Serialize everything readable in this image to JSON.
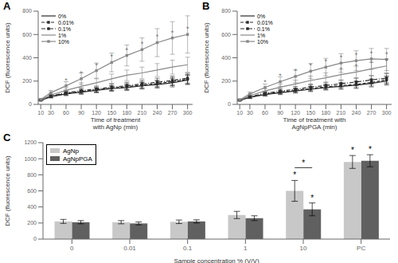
{
  "chart_data": [
    {
      "type": "line",
      "title": "A",
      "xlabel": "Time of treatment\nwith AgNp (min)",
      "ylabel": "DCF (fluorescence units)",
      "x": [
        10,
        30,
        60,
        90,
        120,
        150,
        180,
        210,
        240,
        270,
        300
      ],
      "xlim": [
        5,
        310
      ],
      "xticks": [
        10,
        30,
        60,
        90,
        120,
        150,
        180,
        210,
        240,
        270,
        300
      ],
      "ylim": [
        0,
        800
      ],
      "yticks": [
        0,
        200,
        400,
        600,
        800
      ],
      "grid": false,
      "legend": "upper left",
      "series": [
        {
          "name": "0%",
          "color": "#2b2b2b",
          "line_style": "solid",
          "marker": "none",
          "values": [
            35,
            65,
            90,
            105,
            120,
            135,
            145,
            160,
            170,
            185,
            210
          ],
          "errors": [
            5,
            10,
            15,
            18,
            20,
            22,
            25,
            28,
            30,
            35,
            40
          ]
        },
        {
          "name": "0.01%",
          "color": "#2b2b2b",
          "line_style": "dashed",
          "marker": "square",
          "values": [
            37,
            68,
            95,
            110,
            125,
            140,
            152,
            165,
            178,
            195,
            215
          ],
          "errors": [
            5,
            10,
            15,
            18,
            20,
            22,
            25,
            28,
            30,
            35,
            40
          ]
        },
        {
          "name": "0.1%",
          "color": "#2b2b2b",
          "line_style": "dashdot",
          "marker": "square",
          "values": [
            38,
            72,
            100,
            118,
            132,
            148,
            160,
            175,
            190,
            205,
            225
          ],
          "errors": [
            5,
            12,
            18,
            22,
            25,
            28,
            30,
            32,
            35,
            38,
            42
          ]
        },
        {
          "name": "1%",
          "color": "#888888",
          "line_style": "solid",
          "marker": "none",
          "values": [
            40,
            80,
            120,
            155,
            185,
            220,
            250,
            270,
            295,
            320,
            340
          ],
          "errors": [
            6,
            15,
            22,
            30,
            35,
            40,
            45,
            50,
            55,
            60,
            65
          ]
        },
        {
          "name": "10%",
          "color": "#888888",
          "line_style": "solid",
          "marker": "square",
          "values": [
            42,
            100,
            160,
            220,
            290,
            360,
            420,
            470,
            530,
            570,
            600
          ],
          "errors": [
            8,
            20,
            35,
            50,
            65,
            80,
            90,
            100,
            120,
            140,
            160
          ]
        }
      ],
      "annotations": [
        {
          "text": "*",
          "x": 60,
          "y": 160
        },
        {
          "text": "*",
          "x": 90,
          "y": 220
        },
        {
          "text": "*",
          "x": 120,
          "y": 290
        },
        {
          "text": "*",
          "x": 150,
          "y": 360
        },
        {
          "text": "*",
          "x": 180,
          "y": 420
        },
        {
          "text": "*",
          "x": 210,
          "y": 470
        },
        {
          "text": "*",
          "x": 240,
          "y": 530
        },
        {
          "text": "*",
          "x": 270,
          "y": 570
        },
        {
          "text": "*",
          "x": 300,
          "y": 600
        }
      ]
    },
    {
      "type": "line",
      "title": "B",
      "xlabel": "Time of treatment with\nAgNpPGA (min)",
      "ylabel": "DCF (fluorescence units)",
      "x": [
        10,
        30,
        60,
        90,
        120,
        150,
        180,
        210,
        240,
        270,
        300
      ],
      "xlim": [
        5,
        310
      ],
      "xticks": [
        10,
        30,
        60,
        90,
        120,
        150,
        180,
        210,
        240,
        270,
        300
      ],
      "ylim": [
        0,
        800
      ],
      "yticks": [
        0,
        200,
        400,
        600,
        800
      ],
      "grid": false,
      "legend": "upper left",
      "series": [
        {
          "name": "0%",
          "color": "#2b2b2b",
          "line_style": "solid",
          "marker": "none",
          "values": [
            35,
            60,
            85,
            100,
            115,
            130,
            145,
            155,
            165,
            180,
            200
          ],
          "errors": [
            5,
            10,
            14,
            16,
            18,
            20,
            22,
            25,
            28,
            30,
            35
          ]
        },
        {
          "name": "0.01%",
          "color": "#2b2b2b",
          "line_style": "dashed",
          "marker": "square",
          "values": [
            36,
            63,
            88,
            105,
            120,
            135,
            150,
            162,
            172,
            188,
            210
          ],
          "errors": [
            5,
            10,
            14,
            16,
            18,
            20,
            22,
            25,
            28,
            30,
            35
          ]
        },
        {
          "name": "0.1%",
          "color": "#2b2b2b",
          "line_style": "dashdot",
          "marker": "square",
          "values": [
            37,
            67,
            95,
            115,
            130,
            148,
            162,
            178,
            192,
            210,
            225
          ],
          "errors": [
            5,
            11,
            16,
            20,
            23,
            26,
            28,
            30,
            33,
            36,
            40
          ]
        },
        {
          "name": "1%",
          "color": "#888888",
          "line_style": "solid",
          "marker": "none",
          "values": [
            38,
            75,
            115,
            148,
            175,
            205,
            228,
            255,
            278,
            305,
            330
          ],
          "errors": [
            6,
            14,
            20,
            28,
            33,
            38,
            42,
            46,
            50,
            55,
            60
          ]
        },
        {
          "name": "10%",
          "color": "#888888",
          "line_style": "solid",
          "marker": "square",
          "values": [
            40,
            90,
            145,
            195,
            240,
            285,
            320,
            355,
            375,
            390,
            385
          ],
          "errors": [
            7,
            18,
            30,
            42,
            55,
            65,
            75,
            80,
            85,
            90,
            95
          ]
        }
      ],
      "annotations": [
        {
          "text": "*",
          "x": 60,
          "y": 145
        },
        {
          "text": "*",
          "x": 90,
          "y": 195
        },
        {
          "text": "*",
          "x": 120,
          "y": 240
        },
        {
          "text": "*",
          "x": 150,
          "y": 285
        },
        {
          "text": "*",
          "x": 180,
          "y": 320
        },
        {
          "text": "*",
          "x": 210,
          "y": 355
        },
        {
          "text": "*",
          "x": 240,
          "y": 375
        },
        {
          "text": "*",
          "x": 270,
          "y": 390
        },
        {
          "text": "*",
          "x": 300,
          "y": 385
        },
        {
          "text": "*",
          "x": 210,
          "y": 255
        },
        {
          "text": "*",
          "x": 240,
          "y": 278
        },
        {
          "text": "*",
          "x": 270,
          "y": 305
        },
        {
          "text": "*",
          "x": 300,
          "y": 330
        }
      ]
    },
    {
      "type": "bar",
      "title": "C",
      "xlabel": "Sample concentration % (V/V)",
      "ylabel": "DCF (fluorescence units)",
      "categories": [
        "0",
        "0.01",
        "0.1",
        "1",
        "10",
        "PC"
      ],
      "ylim": [
        0,
        1200
      ],
      "yticks": [
        0,
        200,
        400,
        600,
        800,
        1000,
        1200
      ],
      "grid": false,
      "legend": "upper left",
      "series": [
        {
          "name": "AgNp",
          "color": "#c8c8c8",
          "values": [
            220,
            210,
            215,
            300,
            600,
            960
          ],
          "errors": [
            25,
            20,
            22,
            45,
            130,
            80
          ]
        },
        {
          "name": "AgNpPGA",
          "color": "#606060",
          "values": [
            210,
            195,
            220,
            260,
            370,
            975
          ],
          "errors": [
            20,
            18,
            20,
            30,
            80,
            75
          ]
        }
      ],
      "annotations": [
        {
          "text": "*",
          "x": "10",
          "series": "AgNp"
        },
        {
          "text": "*",
          "x": "10",
          "series": "AgNpPGA"
        },
        {
          "text": "*",
          "x": "10",
          "series": [
            "AgNp",
            "AgNpPGA"
          ]
        },
        {
          "text": "*",
          "x": "PC",
          "series": "AgNp"
        },
        {
          "text": "*",
          "x": "PC",
          "series": "AgNpPGA"
        }
      ]
    }
  ]
}
